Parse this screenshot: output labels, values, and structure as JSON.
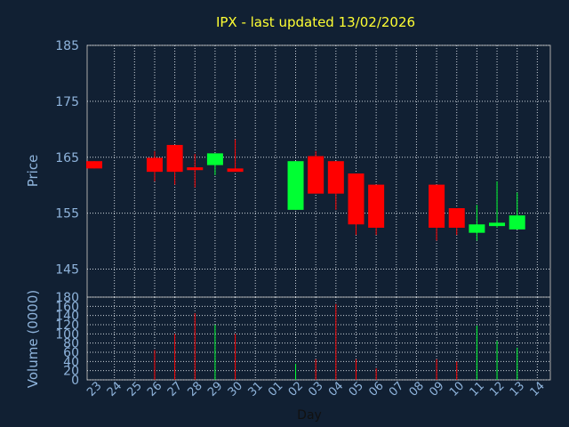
{
  "chart_data": [
    {
      "type": "candlestick",
      "title": "IPX - last updated 13/02/2026",
      "ylabel": "Price",
      "ylim": [
        140,
        185
      ],
      "yticks": [
        145,
        155,
        165,
        175,
        185
      ],
      "grid": true,
      "categories": [
        "23",
        "24",
        "25",
        "26",
        "27",
        "28",
        "29",
        "30",
        "31",
        "01",
        "02",
        "03",
        "04",
        "05",
        "06",
        "07",
        "08",
        "09",
        "10",
        "11",
        "12",
        "13",
        "14"
      ],
      "candles": [
        {
          "day": "23",
          "open": 164.3,
          "close": 163.0,
          "high": 164.3,
          "low": 163.0
        },
        {
          "day": "26",
          "open": 164.9,
          "close": 162.4,
          "high": 166.1,
          "low": 160.7
        },
        {
          "day": "27",
          "open": 167.2,
          "close": 162.4,
          "high": 167.2,
          "low": 160.1
        },
        {
          "day": "28",
          "open": 163.2,
          "close": 162.7,
          "high": 165.6,
          "low": 159.6
        },
        {
          "day": "29",
          "open": 163.6,
          "close": 165.7,
          "high": 165.7,
          "low": 161.8
        },
        {
          "day": "30",
          "open": 163.0,
          "close": 162.4,
          "high": 168.2,
          "low": 162.4
        },
        {
          "day": "02",
          "open": 155.6,
          "close": 164.3,
          "high": 164.3,
          "low": 155.6
        },
        {
          "day": "03",
          "open": 165.2,
          "close": 158.5,
          "high": 166.1,
          "low": 158.5
        },
        {
          "day": "04",
          "open": 164.3,
          "close": 158.5,
          "high": 164.3,
          "low": 155.6
        },
        {
          "day": "05",
          "open": 162.1,
          "close": 153.0,
          "high": 162.1,
          "low": 151.1
        },
        {
          "day": "06",
          "open": 160.1,
          "close": 152.4,
          "high": 160.1,
          "low": 151.1
        },
        {
          "day": "09",
          "open": 160.1,
          "close": 152.4,
          "high": 160.1,
          "low": 150.1
        },
        {
          "day": "10",
          "open": 155.9,
          "close": 152.4,
          "high": 155.9,
          "low": 151.1
        },
        {
          "day": "11",
          "open": 151.5,
          "close": 153.0,
          "high": 156.5,
          "low": 150.1
        },
        {
          "day": "12",
          "open": 152.7,
          "close": 153.3,
          "high": 160.7,
          "low": 152.4
        },
        {
          "day": "13",
          "open": 152.1,
          "close": 154.6,
          "high": 158.7,
          "low": 152.1
        }
      ],
      "colors": {
        "up": "#00ff33",
        "down": "#ff0000"
      }
    },
    {
      "type": "bar",
      "ylabel": "Volume (0000)",
      "xlabel": "Day",
      "ylim": [
        0,
        180
      ],
      "yticks": [
        0,
        20,
        40,
        60,
        80,
        100,
        120,
        140,
        160,
        180
      ],
      "grid": true,
      "volumes": [
        {
          "day": "26",
          "value": 65,
          "dir": "down"
        },
        {
          "day": "27",
          "value": 100,
          "dir": "down"
        },
        {
          "day": "28",
          "value": 145,
          "dir": "down"
        },
        {
          "day": "29",
          "value": 120,
          "dir": "up"
        },
        {
          "day": "30",
          "value": 100,
          "dir": "down"
        },
        {
          "day": "02",
          "value": 35,
          "dir": "up"
        },
        {
          "day": "03",
          "value": 45,
          "dir": "down"
        },
        {
          "day": "04",
          "value": 165,
          "dir": "down"
        },
        {
          "day": "05",
          "value": 45,
          "dir": "down"
        },
        {
          "day": "06",
          "value": 25,
          "dir": "down"
        },
        {
          "day": "09",
          "value": 45,
          "dir": "down"
        },
        {
          "day": "10",
          "value": 40,
          "dir": "down"
        },
        {
          "day": "11",
          "value": 118,
          "dir": "up"
        },
        {
          "day": "12",
          "value": 85,
          "dir": "up"
        },
        {
          "day": "13",
          "value": 70,
          "dir": "up"
        }
      ]
    }
  ]
}
